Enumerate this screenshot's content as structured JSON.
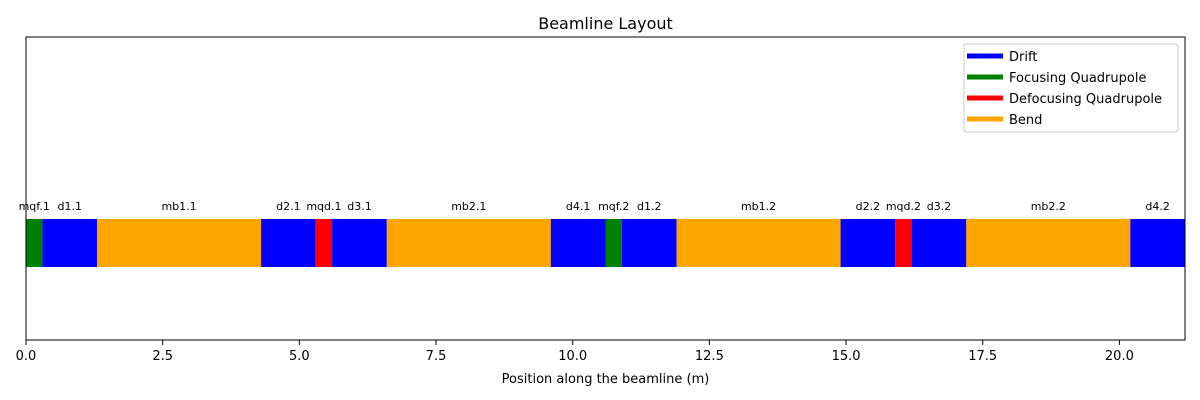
{
  "chart_data": {
    "type": "bar",
    "title": "Beamline Layout",
    "xlabel": "Position along the beamline (m)",
    "ylabel": "",
    "xlim": [
      0,
      21.2
    ],
    "x_ticks": [
      {
        "value": 0,
        "label": "0.0"
      },
      {
        "value": 2.5,
        "label": "2.5"
      },
      {
        "value": 5,
        "label": "5.0"
      },
      {
        "value": 7.5,
        "label": "7.5"
      },
      {
        "value": 10,
        "label": "10.0"
      },
      {
        "value": 12.5,
        "label": "12.5"
      },
      {
        "value": 15,
        "label": "15.0"
      },
      {
        "value": 17.5,
        "label": "17.5"
      },
      {
        "value": 20,
        "label": "20.0"
      }
    ],
    "grid": false,
    "legend_position": "top-right",
    "legend": [
      {
        "name": "Drift",
        "color": "#0000ff"
      },
      {
        "name": "Focusing Quadrupole",
        "color": "#008000"
      },
      {
        "name": "Defocusing Quadrupole",
        "color": "#ff0000"
      },
      {
        "name": "Bend",
        "color": "#ffa500"
      }
    ],
    "elements": [
      {
        "label": "mqf.1",
        "kind": "Focusing Quadrupole",
        "start": 0.0,
        "length": 0.3
      },
      {
        "label": "d1.1",
        "kind": "Drift",
        "start": 0.3,
        "length": 1.0
      },
      {
        "label": "mb1.1",
        "kind": "Bend",
        "start": 1.3,
        "length": 3.0
      },
      {
        "label": "d2.1",
        "kind": "Drift",
        "start": 4.3,
        "length": 1.0
      },
      {
        "label": "mqd.1",
        "kind": "Defocusing Quadrupole",
        "start": 5.3,
        "length": 0.3
      },
      {
        "label": "d3.1",
        "kind": "Drift",
        "start": 5.6,
        "length": 1.0
      },
      {
        "label": "mb2.1",
        "kind": "Bend",
        "start": 6.6,
        "length": 3.0
      },
      {
        "label": "d4.1",
        "kind": "Drift",
        "start": 9.6,
        "length": 1.0
      },
      {
        "label": "mqf.2",
        "kind": "Focusing Quadrupole",
        "start": 10.6,
        "length": 0.3
      },
      {
        "label": "d1.2",
        "kind": "Drift",
        "start": 10.9,
        "length": 1.0
      },
      {
        "label": "mb1.2",
        "kind": "Bend",
        "start": 11.9,
        "length": 3.0
      },
      {
        "label": "d2.2",
        "kind": "Drift",
        "start": 14.9,
        "length": 1.0
      },
      {
        "label": "mqd.2",
        "kind": "Defocusing Quadrupole",
        "start": 15.9,
        "length": 0.3
      },
      {
        "label": "d3.2",
        "kind": "Drift",
        "start": 16.2,
        "length": 1.0
      },
      {
        "label": "mb2.2",
        "kind": "Bend",
        "start": 17.2,
        "length": 3.0
      },
      {
        "label": "d4.2",
        "kind": "Drift",
        "start": 20.2,
        "length": 1.0
      }
    ]
  }
}
